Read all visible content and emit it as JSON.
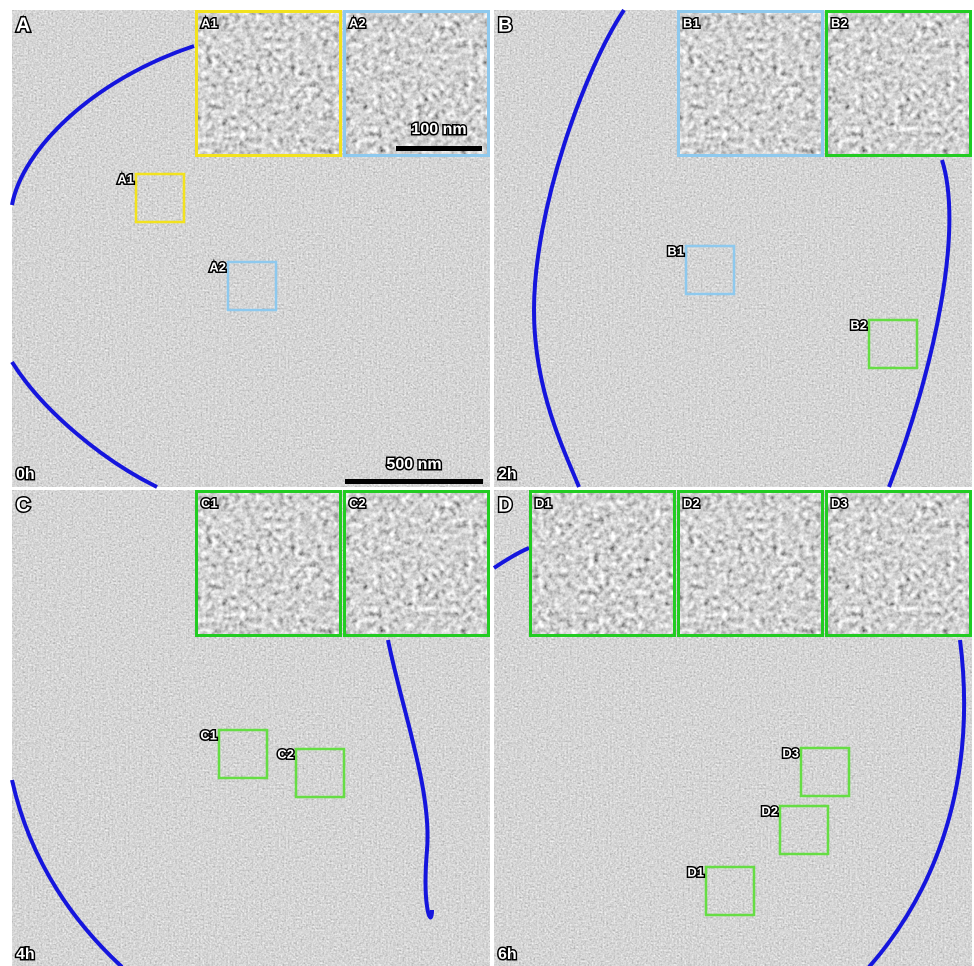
{
  "panels": [
    {
      "letter": "A",
      "time": "0h",
      "scale_bar": "500 nm",
      "inset_scale_bar": "100 nm",
      "insets": [
        {
          "label": "A1",
          "color": "#f2e21e"
        },
        {
          "label": "A2",
          "color": "#8ec9ee"
        }
      ],
      "boxes": [
        {
          "label": "A1",
          "color": "#f2e21e"
        },
        {
          "label": "A2",
          "color": "#8ec9ee"
        }
      ]
    },
    {
      "letter": "B",
      "time": "2h",
      "insets": [
        {
          "label": "B1",
          "color": "#8ec9ee"
        },
        {
          "label": "B2",
          "color": "#22cc22"
        }
      ],
      "boxes": [
        {
          "label": "B1",
          "color": "#8ec9ee"
        },
        {
          "label": "B2",
          "color": "#66dd44"
        }
      ]
    },
    {
      "letter": "C",
      "time": "4h",
      "insets": [
        {
          "label": "C1",
          "color": "#22cc22"
        },
        {
          "label": "C2",
          "color": "#22cc22"
        }
      ],
      "boxes": [
        {
          "label": "C1",
          "color": "#66dd44"
        },
        {
          "label": "C2",
          "color": "#66dd44"
        }
      ]
    },
    {
      "letter": "D",
      "time": "6h",
      "insets": [
        {
          "label": "D1",
          "color": "#22cc22"
        },
        {
          "label": "D2",
          "color": "#22cc22"
        },
        {
          "label": "D3",
          "color": "#22cc22"
        }
      ],
      "boxes": [
        {
          "label": "D3",
          "color": "#66dd44"
        },
        {
          "label": "D2",
          "color": "#66dd44"
        },
        {
          "label": "D1",
          "color": "#66dd44"
        }
      ]
    }
  ]
}
